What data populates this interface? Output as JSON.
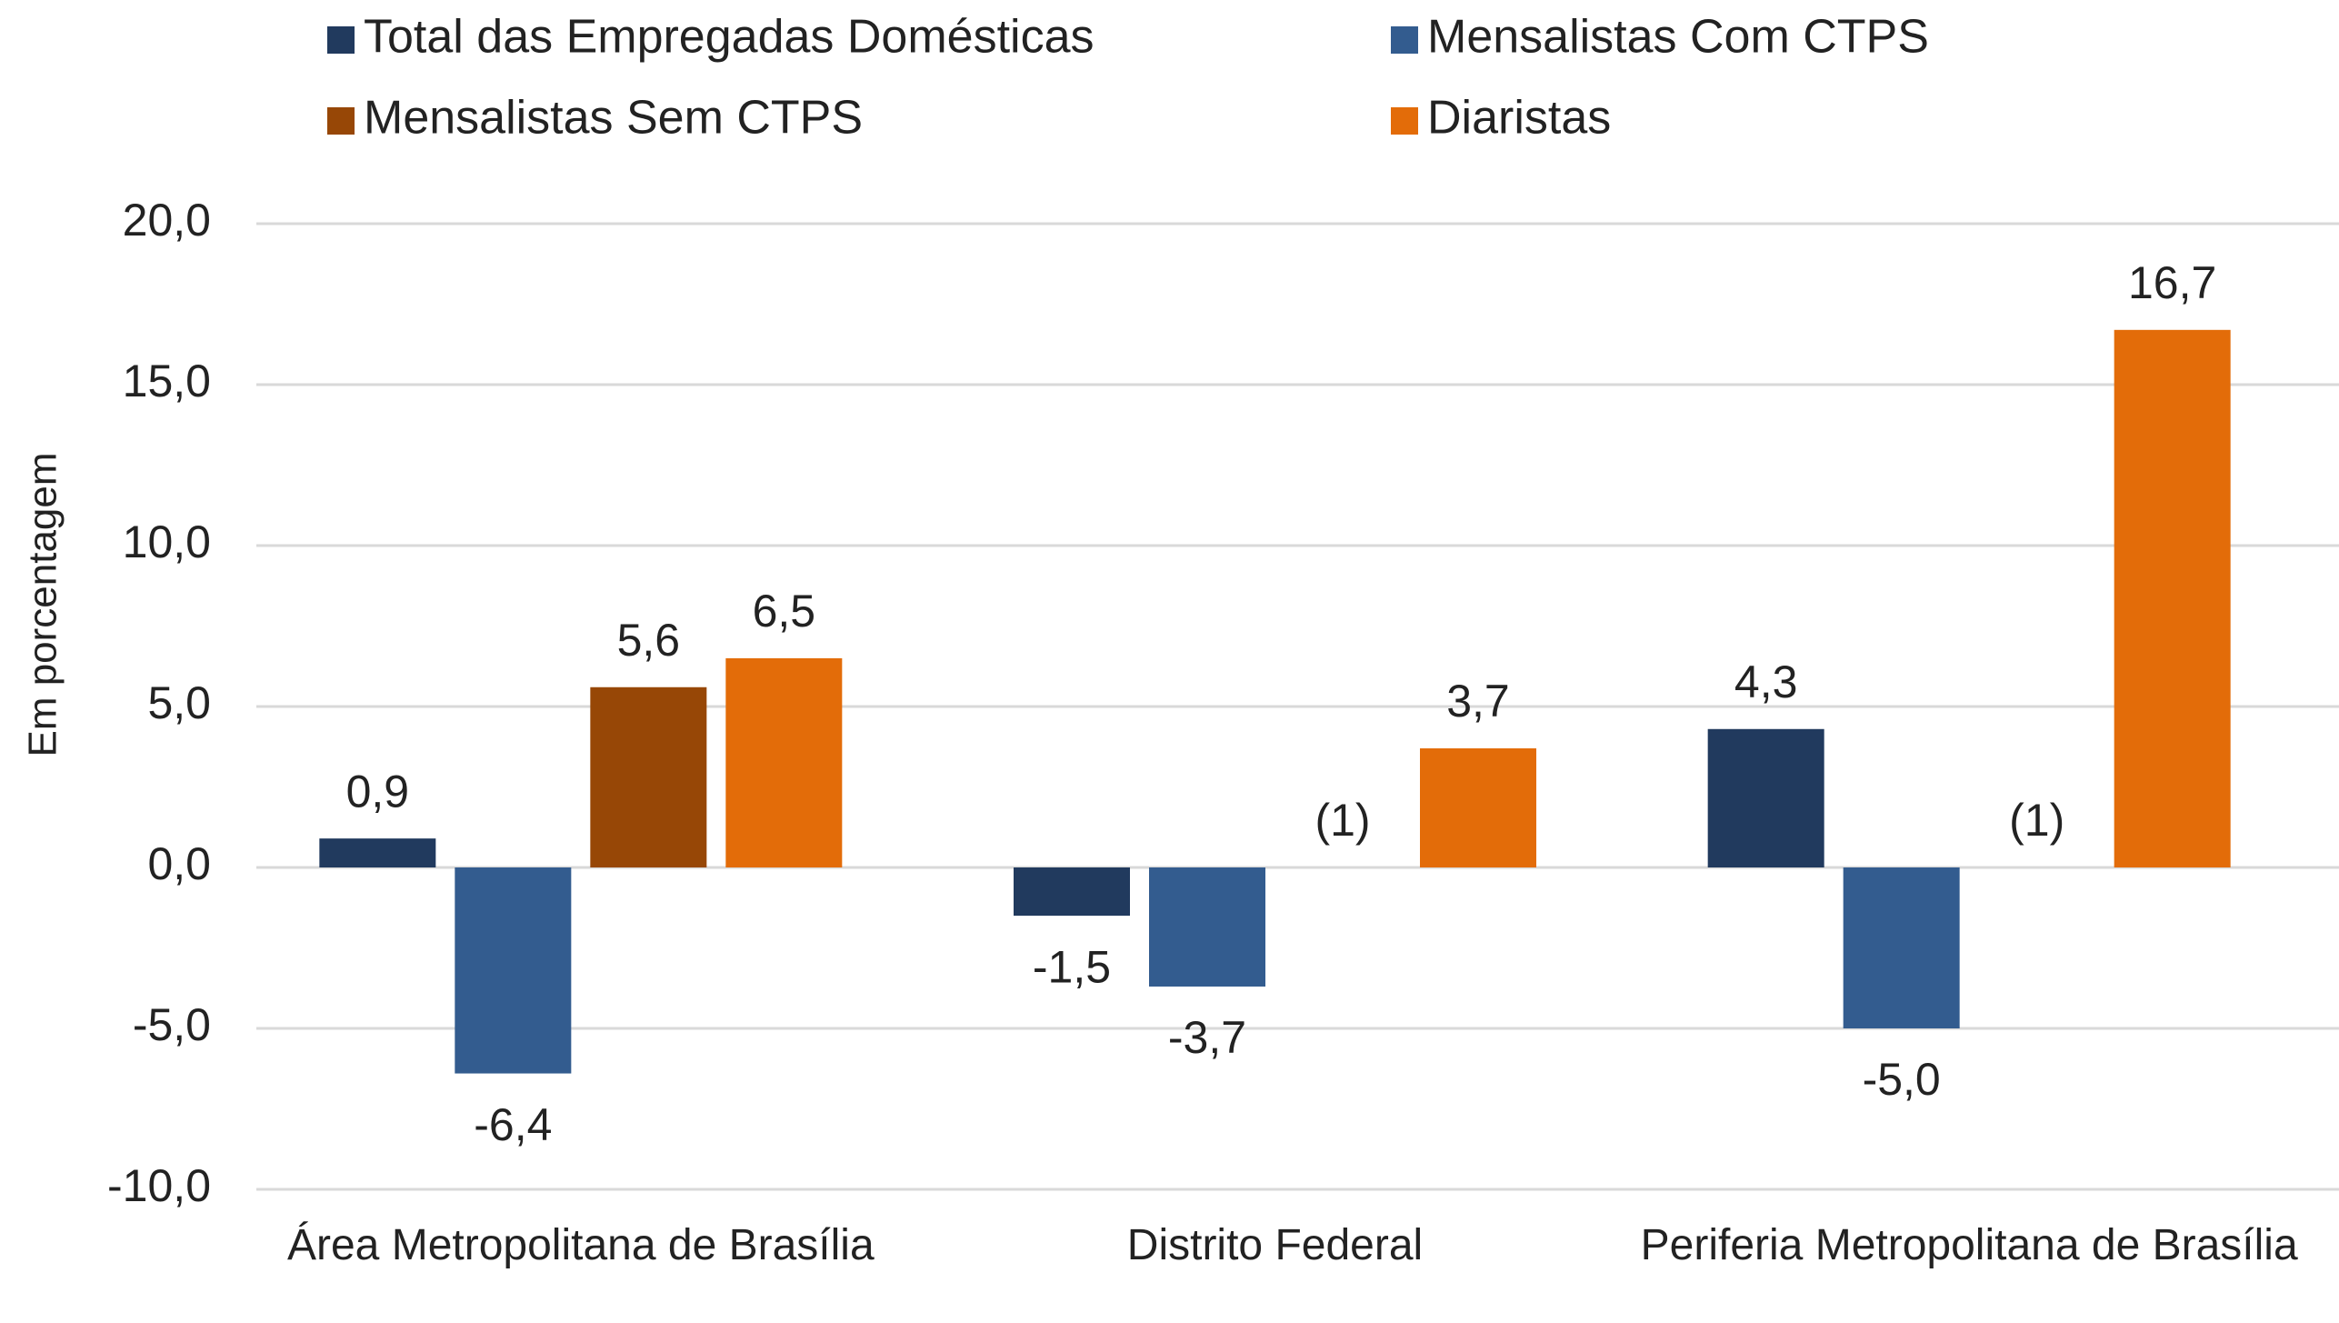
{
  "chart_data": {
    "type": "bar",
    "y_label": "Em porcentagem",
    "categories": [
      "Área Metropolitana de Brasília",
      "Distrito Federal",
      "Periferia Metropolitana de Brasília"
    ],
    "series": [
      {
        "name": "Total das Empregadas Domésticas",
        "color": "#213a5e",
        "values": [
          0.9,
          -1.5,
          4.3
        ],
        "value_labels": [
          "0,9",
          "-1,5",
          "4,3"
        ]
      },
      {
        "name": "Mensalistas Com CTPS",
        "color": "#335c8f",
        "values": [
          -6.4,
          -3.7,
          -5.0
        ],
        "value_labels": [
          "-6,4",
          "-3,7",
          "-5,0"
        ]
      },
      {
        "name": "Mensalistas Sem CTPS",
        "color": "#974706",
        "values": [
          5.6,
          null,
          null
        ],
        "value_labels": [
          "5,6",
          "(1)",
          "(1)"
        ]
      },
      {
        "name": "Diaristas",
        "color": "#e36c09",
        "values": [
          6.5,
          3.7,
          16.7
        ],
        "value_labels": [
          "6,5",
          "3,7",
          "16,7"
        ]
      }
    ],
    "ylim": [
      -10,
      20
    ],
    "yticks": [
      {
        "value": -10,
        "label": "-10,0"
      },
      {
        "value": -5,
        "label": "-5,0"
      },
      {
        "value": 0,
        "label": "0,0"
      },
      {
        "value": 5,
        "label": "5,0"
      },
      {
        "value": 10,
        "label": "10,0"
      },
      {
        "value": 15,
        "label": "15,0"
      },
      {
        "value": 20,
        "label": "20,0"
      }
    ],
    "grid": true,
    "legend": "top"
  }
}
